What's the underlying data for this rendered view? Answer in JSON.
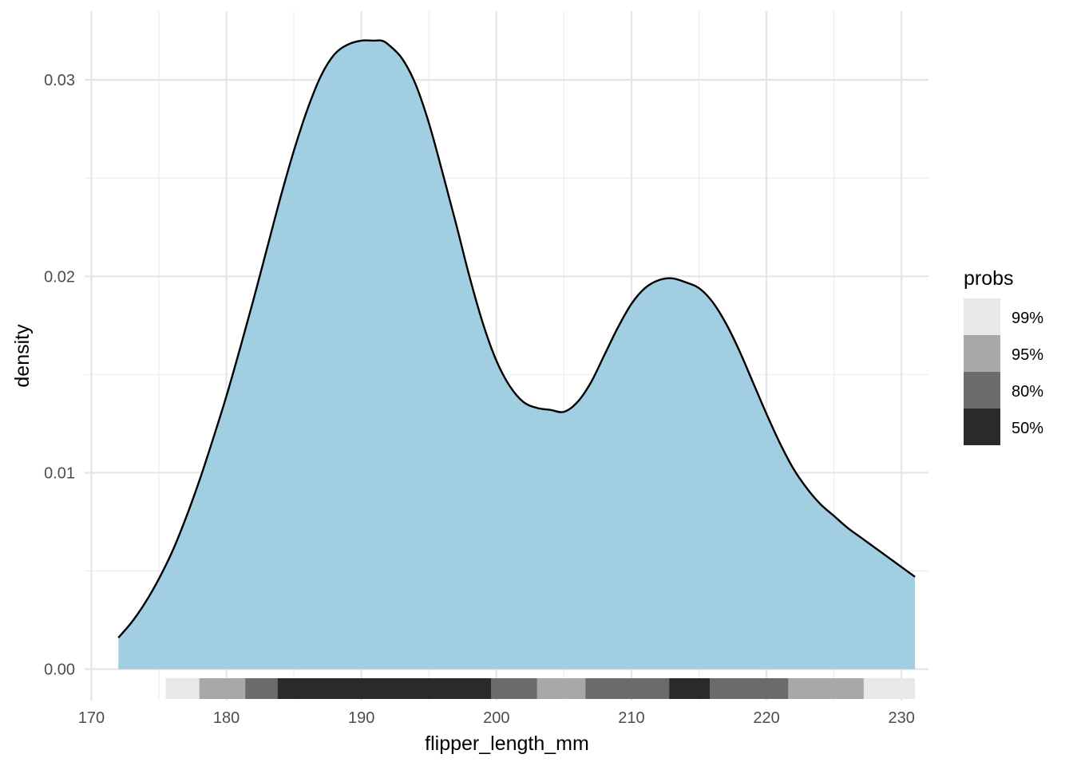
{
  "chart_data": {
    "type": "area",
    "subtype": "density",
    "xlabel": "flipper_length_mm",
    "ylabel": "density",
    "xlim": [
      169.5,
      232
    ],
    "ylim": [
      -0.0016,
      0.0335
    ],
    "x_ticks": [
      170,
      180,
      190,
      200,
      210,
      220,
      230
    ],
    "x_tick_labels": [
      "170",
      "180",
      "190",
      "200",
      "210",
      "220",
      "230"
    ],
    "y_ticks": [
      0,
      0.01,
      0.02,
      0.03
    ],
    "y_tick_labels": [
      "0.00",
      "0.01",
      "0.02",
      "0.03"
    ],
    "grid": true,
    "fill_color": "#A1CEE0",
    "line_color": "#000000",
    "density_curve": {
      "x": [
        172,
        173,
        174,
        175,
        176,
        177,
        178,
        179,
        180,
        181,
        182,
        183,
        184,
        185,
        186,
        187,
        188,
        189,
        190,
        191,
        191.5,
        192,
        193,
        194,
        195,
        196,
        197,
        198,
        199,
        200,
        201,
        202,
        203,
        204,
        205,
        206,
        207,
        208,
        209,
        210,
        211,
        212,
        213,
        214,
        215,
        216,
        217,
        218,
        219,
        220,
        221,
        222,
        223,
        224,
        225,
        226,
        227,
        228,
        229,
        230,
        231
      ],
      "y": [
        0.0016,
        0.0024,
        0.0034,
        0.0046,
        0.006,
        0.0077,
        0.0096,
        0.0117,
        0.0139,
        0.0163,
        0.0188,
        0.0214,
        0.024,
        0.0264,
        0.0285,
        0.0302,
        0.0313,
        0.0318,
        0.032,
        0.032,
        0.032,
        0.0318,
        0.0311,
        0.0298,
        0.0278,
        0.0253,
        0.0227,
        0.02,
        0.0176,
        0.0157,
        0.0144,
        0.0136,
        0.0133,
        0.0132,
        0.0131,
        0.0136,
        0.0146,
        0.016,
        0.0174,
        0.0186,
        0.0194,
        0.0198,
        0.0199,
        0.0197,
        0.0194,
        0.0187,
        0.0176,
        0.0162,
        0.0146,
        0.013,
        0.0115,
        0.0102,
        0.0092,
        0.0084,
        0.0078,
        0.0072,
        0.0067,
        0.0062,
        0.0057,
        0.0052,
        0.0047
      ]
    },
    "interval_bar": {
      "legend_title": "probs",
      "levels": [
        {
          "label": "99%",
          "from": 175.5,
          "to": 231,
          "color": "#E8E8E8"
        },
        {
          "label": "95%",
          "from": 178,
          "to": 227.2,
          "color": "#A8A8A8"
        },
        {
          "label": "80%",
          "from": 181.4,
          "to": 221.6,
          "color": "#6B6B6B"
        },
        {
          "label": "50%",
          "from": 183.8,
          "to": 199.6,
          "color": "#2A2A2A"
        }
      ],
      "extra_segments": [
        {
          "label": "80%",
          "from": 199.6,
          "to": 203,
          "color": "#6B6B6B"
        },
        {
          "label": "95%",
          "from": 203,
          "to": 206.6,
          "color": "#A8A8A8"
        },
        {
          "label": "80%",
          "from": 206.6,
          "to": 212.8,
          "color": "#6B6B6B"
        },
        {
          "label": "50%",
          "from": 212.8,
          "to": 215.8,
          "color": "#2A2A2A"
        },
        {
          "label": "80%",
          "from": 215.8,
          "to": 221.6,
          "color": "#6B6B6B"
        }
      ]
    },
    "legend_position": "right",
    "legend": [
      {
        "label": "99%",
        "color": "#E8E8E8"
      },
      {
        "label": "95%",
        "color": "#A8A8A8"
      },
      {
        "label": "80%",
        "color": "#6B6B6B"
      },
      {
        "label": "50%",
        "color": "#2A2A2A"
      }
    ]
  }
}
